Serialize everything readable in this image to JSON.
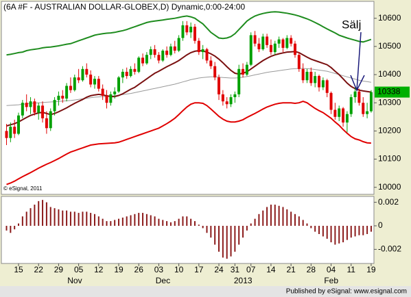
{
  "chart_data": [
    {
      "type": "candlestick",
      "title": "(6A #F - AUSTRALIAN DOLLAR-GLOBEX,D) Dynamic,0:00-24:00",
      "categories": [
        null,
        null,
        null,
        "15",
        null,
        null,
        null,
        null,
        "22",
        null,
        null,
        null,
        null,
        "29",
        null,
        null,
        null,
        null,
        "05",
        null,
        null,
        null,
        null,
        "12",
        null,
        null,
        null,
        null,
        "19",
        null,
        null,
        null,
        null,
        "26",
        null,
        null,
        null,
        null,
        "03",
        null,
        null,
        null,
        null,
        "10",
        null,
        null,
        null,
        null,
        "17",
        null,
        null,
        null,
        null,
        "24",
        null,
        null,
        null,
        "31",
        null,
        null,
        null,
        "07",
        null,
        null,
        null,
        null,
        "14",
        null,
        null,
        null,
        null,
        "21",
        null,
        null,
        null,
        null,
        "28",
        null,
        null,
        null,
        null,
        "04",
        null,
        null,
        null,
        null,
        "11",
        null,
        null,
        null,
        null,
        "19"
      ],
      "months": [
        null,
        null,
        null,
        null,
        null,
        null,
        null,
        null,
        null,
        null,
        null,
        null,
        null,
        null,
        null,
        null,
        "Nov",
        null,
        null,
        null,
        null,
        null,
        null,
        null,
        null,
        null,
        null,
        null,
        null,
        null,
        null,
        null,
        null,
        null,
        null,
        null,
        null,
        null,
        "Dec",
        null,
        null,
        null,
        null,
        null,
        null,
        null,
        null,
        null,
        null,
        null,
        null,
        null,
        null,
        null,
        null,
        null,
        null,
        null,
        "2013",
        null,
        null,
        null,
        null,
        null,
        null,
        null,
        null,
        null,
        null,
        null,
        null,
        null,
        null,
        null,
        null,
        null,
        null,
        null,
        null,
        null,
        "Feb",
        null,
        null,
        null,
        null,
        null,
        null,
        null,
        null,
        null,
        null,
        null
      ],
      "open": [
        10200,
        10175,
        10215,
        10190,
        10255,
        10300,
        10285,
        10305,
        10265,
        10290,
        10245,
        10210,
        10270,
        10310,
        10325,
        10315,
        10360,
        10345,
        10390,
        10380,
        10420,
        10400,
        10365,
        10385,
        10350,
        10325,
        10300,
        10330,
        10340,
        10390,
        10410,
        10395,
        10420,
        10410,
        10460,
        10440,
        10470,
        10490,
        10470,
        10450,
        10485,
        10470,
        10500,
        10485,
        10530,
        10575,
        10550,
        10570,
        10520,
        10480,
        10490,
        10450,
        10430,
        10390,
        10330,
        10305,
        10295,
        10320,
        10330,
        10420,
        10400,
        10435,
        10540,
        10510,
        10490,
        10535,
        10505,
        10480,
        10510,
        10525,
        10495,
        10530,
        10510,
        10470,
        10420,
        10380,
        10410,
        10370,
        10395,
        10355,
        10380,
        10335,
        10275,
        10250,
        10280,
        10230,
        10260,
        10320,
        10340,
        10300,
        10260,
        10270
      ],
      "high": [
        10225,
        10230,
        10240,
        10265,
        10310,
        10330,
        10320,
        10315,
        10300,
        10305,
        10270,
        10280,
        10320,
        10340,
        10345,
        10370,
        10390,
        10400,
        10420,
        10430,
        10440,
        10415,
        10395,
        10395,
        10365,
        10345,
        10340,
        10355,
        10395,
        10420,
        10425,
        10430,
        10440,
        10465,
        10475,
        10480,
        10500,
        10505,
        10480,
        10490,
        10500,
        10510,
        10520,
        10540,
        10590,
        10590,
        10585,
        10580,
        10530,
        10505,
        10495,
        10465,
        10445,
        10400,
        10345,
        10320,
        10330,
        10340,
        10435,
        10440,
        10445,
        10550,
        10555,
        10530,
        10545,
        10545,
        10525,
        10520,
        10535,
        10530,
        10540,
        10540,
        10520,
        10480,
        10440,
        10420,
        10425,
        10410,
        10400,
        10390,
        10385,
        10340,
        10300,
        10290,
        10285,
        10270,
        10330,
        10355,
        10350,
        10320,
        10300,
        10345
      ],
      "low": [
        10150,
        10160,
        10175,
        10185,
        10245,
        10270,
        10260,
        10255,
        10240,
        10230,
        10190,
        10200,
        10255,
        10290,
        10300,
        10305,
        10335,
        10340,
        10370,
        10375,
        10390,
        10355,
        10350,
        10340,
        10310,
        10280,
        10290,
        10315,
        10335,
        10370,
        10385,
        10390,
        10400,
        10405,
        10430,
        10435,
        10455,
        10460,
        10440,
        10445,
        10460,
        10465,
        10475,
        10480,
        10520,
        10540,
        10530,
        10510,
        10470,
        10455,
        10440,
        10420,
        10380,
        10310,
        10290,
        10280,
        10285,
        10300,
        10320,
        10390,
        10395,
        10430,
        10500,
        10480,
        10485,
        10495,
        10470,
        10470,
        10495,
        10480,
        10490,
        10500,
        10460,
        10410,
        10370,
        10370,
        10360,
        10355,
        10340,
        10345,
        10320,
        10260,
        10240,
        10235,
        10215,
        10195,
        10250,
        10300,
        10290,
        10250,
        10245,
        10265
      ],
      "close": [
        10175,
        10215,
        10190,
        10255,
        10300,
        10285,
        10305,
        10265,
        10290,
        10245,
        10210,
        10270,
        10310,
        10325,
        10315,
        10360,
        10345,
        10390,
        10380,
        10420,
        10400,
        10365,
        10385,
        10350,
        10325,
        10300,
        10330,
        10340,
        10390,
        10410,
        10395,
        10420,
        10410,
        10460,
        10440,
        10470,
        10490,
        10470,
        10450,
        10485,
        10470,
        10500,
        10485,
        10530,
        10575,
        10550,
        10570,
        10520,
        10480,
        10490,
        10450,
        10430,
        10390,
        10330,
        10305,
        10295,
        10320,
        10330,
        10420,
        10400,
        10435,
        10540,
        10510,
        10490,
        10535,
        10505,
        10480,
        10510,
        10525,
        10495,
        10530,
        10510,
        10470,
        10420,
        10380,
        10410,
        10370,
        10395,
        10355,
        10380,
        10335,
        10275,
        10250,
        10280,
        10230,
        10260,
        10320,
        10340,
        10300,
        10260,
        10270,
        10338
      ],
      "up_color": "#00a000",
      "down_color": "#e00000",
      "lines": [
        {
          "color": "#999999",
          "width": 1,
          "values": [
            10290,
            10291,
            10292,
            10293,
            10295,
            10296,
            10298,
            10299,
            10300,
            10301,
            10302,
            10303,
            10304,
            10305,
            10306,
            10307,
            10308,
            10310,
            10312,
            10314,
            10316,
            10318,
            10320,
            10321,
            10322,
            10323,
            10324,
            10325,
            10327,
            10329,
            10331,
            10333,
            10336,
            10339,
            10342,
            10345,
            10348,
            10351,
            10354,
            10357,
            10360,
            10363,
            10366,
            10370,
            10374,
            10378,
            10382,
            10385,
            10388,
            10390,
            10391,
            10392,
            10392,
            10391,
            10390,
            10389,
            10388,
            10388,
            10389,
            10391,
            10393,
            10396,
            10399,
            10402,
            10405,
            10408,
            10410,
            10412,
            10414,
            10416,
            10418,
            10420,
            10421,
            10422,
            10422,
            10421,
            10420,
            10418,
            10416,
            10414,
            10412,
            10408,
            10404,
            10400,
            10396,
            10392,
            10388,
            10384,
            10380,
            10377,
            10375,
            10373
          ]
        },
        {
          "color": "#1e8c1e",
          "width": 2,
          "values": [
            10470,
            10472,
            10475,
            10478,
            10480,
            10485,
            10488,
            10490,
            10492,
            10495,
            10497,
            10498,
            10500,
            10502,
            10505,
            10508,
            10510,
            10515,
            10520,
            10525,
            10530,
            10535,
            10540,
            10543,
            10545,
            10547,
            10548,
            10550,
            10553,
            10556,
            10560,
            10565,
            10570,
            10575,
            10580,
            10585,
            10588,
            10590,
            10592,
            10594,
            10596,
            10598,
            10600,
            10603,
            10606,
            10608,
            10605,
            10600,
            10590,
            10580,
            10565,
            10550,
            10540,
            10530,
            10528,
            10530,
            10535,
            10545,
            10560,
            10575,
            10590,
            10600,
            10608,
            10613,
            10617,
            10620,
            10622,
            10623,
            10622,
            10620,
            10618,
            10615,
            10612,
            10608,
            10603,
            10598,
            10592,
            10585,
            10578,
            10570,
            10562,
            10555,
            10548,
            10540,
            10535,
            10530,
            10526,
            10522,
            10518,
            10516,
            10520,
            10525
          ]
        },
        {
          "color": "#e00000",
          "width": 2,
          "values": [
            10010,
            10015,
            10022,
            10030,
            10038,
            10045,
            10052,
            10060,
            10068,
            10075,
            10082,
            10088,
            10095,
            10102,
            10110,
            10118,
            10125,
            10130,
            10135,
            10140,
            10145,
            10150,
            10152,
            10154,
            10155,
            10156,
            10157,
            10158,
            10160,
            10165,
            10170,
            10175,
            10180,
            10185,
            10190,
            10195,
            10200,
            10205,
            10210,
            10218,
            10226,
            10235,
            10245,
            10258,
            10272,
            10285,
            10295,
            10300,
            10300,
            10298,
            10290,
            10278,
            10265,
            10252,
            10242,
            10235,
            10232,
            10232,
            10235,
            10240,
            10248,
            10255,
            10262,
            10270,
            10278,
            10285,
            10290,
            10295,
            10298,
            10300,
            10300,
            10300,
            10298,
            10300,
            10305,
            10300,
            10290,
            10280,
            10272,
            10265,
            10255,
            10245,
            10232,
            10220,
            10205,
            10192,
            10180,
            10172,
            10168,
            10162,
            10158,
            10157
          ]
        },
        {
          "color": "#7a1010",
          "width": 2,
          "values": [
            10218,
            10222,
            10226,
            10232,
            10240,
            10248,
            10255,
            10260,
            10264,
            10266,
            10262,
            10258,
            10262,
            10268,
            10275,
            10282,
            10290,
            10298,
            10305,
            10312,
            10320,
            10325,
            10328,
            10330,
            10328,
            10325,
            10322,
            10322,
            10326,
            10332,
            10340,
            10348,
            10355,
            10365,
            10375,
            10385,
            10395,
            10405,
            10412,
            10420,
            10428,
            10435,
            10442,
            10450,
            10460,
            10470,
            10478,
            10483,
            10485,
            10484,
            10480,
            10474,
            10466,
            10455,
            10442,
            10428,
            10415,
            10405,
            10402,
            10405,
            10410,
            10420,
            10430,
            10440,
            10450,
            10458,
            10465,
            10470,
            10474,
            10477,
            10480,
            10481,
            10482,
            10478,
            10470,
            10462,
            10455,
            10450,
            10445,
            10440,
            10435,
            10425,
            10412,
            10400,
            10385,
            10370,
            10358,
            10350,
            10345,
            10342,
            10340,
            10338
          ]
        }
      ],
      "ylim": [
        9975,
        10660
      ],
      "yticks": [
        10000,
        10100,
        10200,
        10300,
        10400,
        10500,
        10600
      ],
      "last_price": 10338,
      "last_price_color": "#00b000",
      "annotation": "Sälj",
      "annotation_color": "#1a1a7a",
      "copyright": "© eSignal, 2011"
    },
    {
      "type": "bar",
      "values": [
        -0.0004,
        -0.0006,
        -0.0003,
        0.0002,
        0.0008,
        0.0012,
        0.0015,
        0.0018,
        0.0021,
        0.0022,
        0.002,
        0.0016,
        0.0015,
        0.0014,
        0.0013,
        0.0013,
        0.0012,
        0.0012,
        0.0011,
        0.0012,
        0.0012,
        0.0011,
        0.001,
        0.0008,
        0.0006,
        0.0004,
        0.0004,
        0.0005,
        0.0006,
        0.0007,
        0.0008,
        0.0009,
        0.001,
        0.0011,
        0.0011,
        0.001,
        0.0009,
        0.0008,
        0.0006,
        0.0005,
        0.0004,
        0.0003,
        0.0004,
        0.0006,
        0.0008,
        0.0008,
        0.0006,
        0.0004,
        0.0001,
        -0.0002,
        -0.0006,
        -0.001,
        -0.0016,
        -0.0022,
        -0.0027,
        -0.0028,
        -0.0026,
        -0.0022,
        -0.0016,
        -0.001,
        -0.0004,
        0.0002,
        0.0006,
        0.001,
        0.0013,
        0.0016,
        0.0018,
        0.0018,
        0.0017,
        0.0016,
        0.0014,
        0.0012,
        0.001,
        0.0008,
        0.0005,
        0.0002,
        -0.0002,
        -0.0005,
        -0.0007,
        -0.0009,
        -0.0011,
        -0.0014,
        -0.0016,
        -0.0015,
        -0.0014,
        -0.0012,
        -0.001,
        -0.0009,
        -0.0008,
        -0.0008,
        -0.0007,
        -0.0005
      ],
      "color": "#8b1a1a",
      "ylim": [
        -0.0032,
        0.0025
      ],
      "yticks": [
        -0.002,
        0,
        0.002
      ]
    }
  ],
  "footer": "Published by eSignal: www.esignal.com"
}
